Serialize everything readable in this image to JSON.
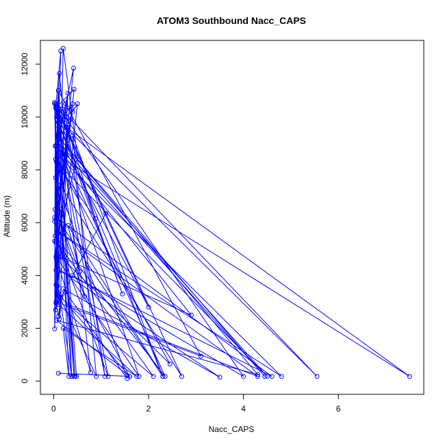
{
  "chart_data": {
    "type": "line",
    "title": "ATOM3 Southbound Nacc_CAPS",
    "xlabel": "Nacc_CAPS",
    "ylabel": "Altitude (m)",
    "xlim": [
      -0.28,
      7.8
    ],
    "ylim": [
      -500,
      12900
    ],
    "xticks": [
      0,
      2,
      4,
      6
    ],
    "yticks": [
      0,
      2000,
      4000,
      6000,
      8000,
      10000,
      12000
    ],
    "grid": false,
    "legend": "none",
    "series_color": "#0000ff",
    "marker": "open-circle",
    "series": [
      {
        "x": [
          0.38,
          0.05,
          0.02,
          0.1,
          0.15,
          0.04,
          0.05,
          0.4,
          0.07,
          0.05,
          0.09,
          0.3,
          0.03,
          0.1,
          0.08,
          0.2,
          0.5,
          0.05,
          0.07,
          0.42,
          0.08,
          0.12,
          0.12,
          0.05,
          0.1,
          0.15,
          1.1,
          0.02,
          0.04,
          0.06,
          0.08,
          0.5,
          0.4,
          0.15,
          0.1,
          0.3,
          0.02,
          0.06,
          0.43,
          0.08,
          0.02,
          0.1,
          0.05,
          0.3,
          0.12,
          0.18,
          0.04,
          0.02,
          0.35,
          0.1,
          0.03,
          0.02,
          0.1,
          0.25,
          0.38,
          0.06,
          0.25,
          0.2,
          0.12,
          0.06,
          0.02
        ],
        "y": [
          180,
          4200,
          5300,
          9300,
          12500,
          10350,
          6100,
          10500,
          9700,
          3650,
          2900,
          10900,
          6500,
          11000,
          3100,
          12600,
          8500,
          5250,
          9000,
          11850,
          5900,
          9300,
          9300,
          2950,
          2450,
          3150,
          6350,
          10550,
          8400,
          4800,
          3600,
          10500,
          10200,
          9900,
          9200,
          9700,
          5300,
          4600,
          11050,
          10400,
          6050,
          10300,
          3000,
          9600,
          2350,
          3300,
          2700,
          6200,
          9900,
          10000,
          8900,
          1980,
          5600,
          10500,
          10300,
          10400,
          9900,
          10200,
          11650,
          10000,
          10500
        ]
      },
      {
        "x": [
          0.4,
          4.0,
          0.05,
          5.55,
          0.2,
          7.5,
          0.12,
          4.8,
          0.06,
          4.3,
          0.3,
          2.1,
          0.05,
          1.6,
          0.1,
          0.9,
          0.4,
          2.3,
          0.06,
          4.6,
          0.12,
          3.5,
          0.2,
          1.55,
          0.04,
          2.7,
          0.1,
          0.78,
          0.05,
          1.8,
          0.15,
          2.35,
          0.03,
          1.15,
          0.08,
          0.32,
          0.2,
          1.75,
          0.05,
          3.1,
          0.1,
          0.38,
          0.06,
          4.5,
          0.12,
          0.48
        ],
        "y": [
          4000,
          180,
          10500,
          180,
          9700,
          180,
          8500,
          180,
          5700,
          180,
          2900,
          180,
          5300,
          180,
          3300,
          180,
          9300,
          180,
          6200,
          180,
          4200,
          150,
          3500,
          100,
          7700,
          180,
          10200,
          330,
          4700,
          180,
          8800,
          180,
          5500,
          180,
          9900,
          180,
          2000,
          180,
          3000,
          950,
          11000,
          180,
          8300,
          180,
          9000,
          180
        ]
      },
      {
        "x": [
          0.43,
          0.15,
          0.45,
          0.08,
          2.0,
          0.05,
          1.45,
          0.1,
          2.3,
          0.3,
          0.55,
          0.08,
          0.65,
          0.05,
          2.9,
          0.15,
          2.45,
          0.2,
          0.88,
          0.3,
          1.08,
          0.15,
          4.45,
          0.12,
          4.3,
          0.06,
          1.6,
          0.1
        ],
        "y": [
          180,
          6500,
          180,
          9300,
          2800,
          10300,
          3300,
          9800,
          180,
          5900,
          4150,
          6300,
          3200,
          8900,
          2500,
          4700,
          650,
          7900,
          6150,
          9500,
          180,
          8800,
          180,
          9200,
          250,
          2300,
          180,
          300
        ]
      }
    ]
  }
}
